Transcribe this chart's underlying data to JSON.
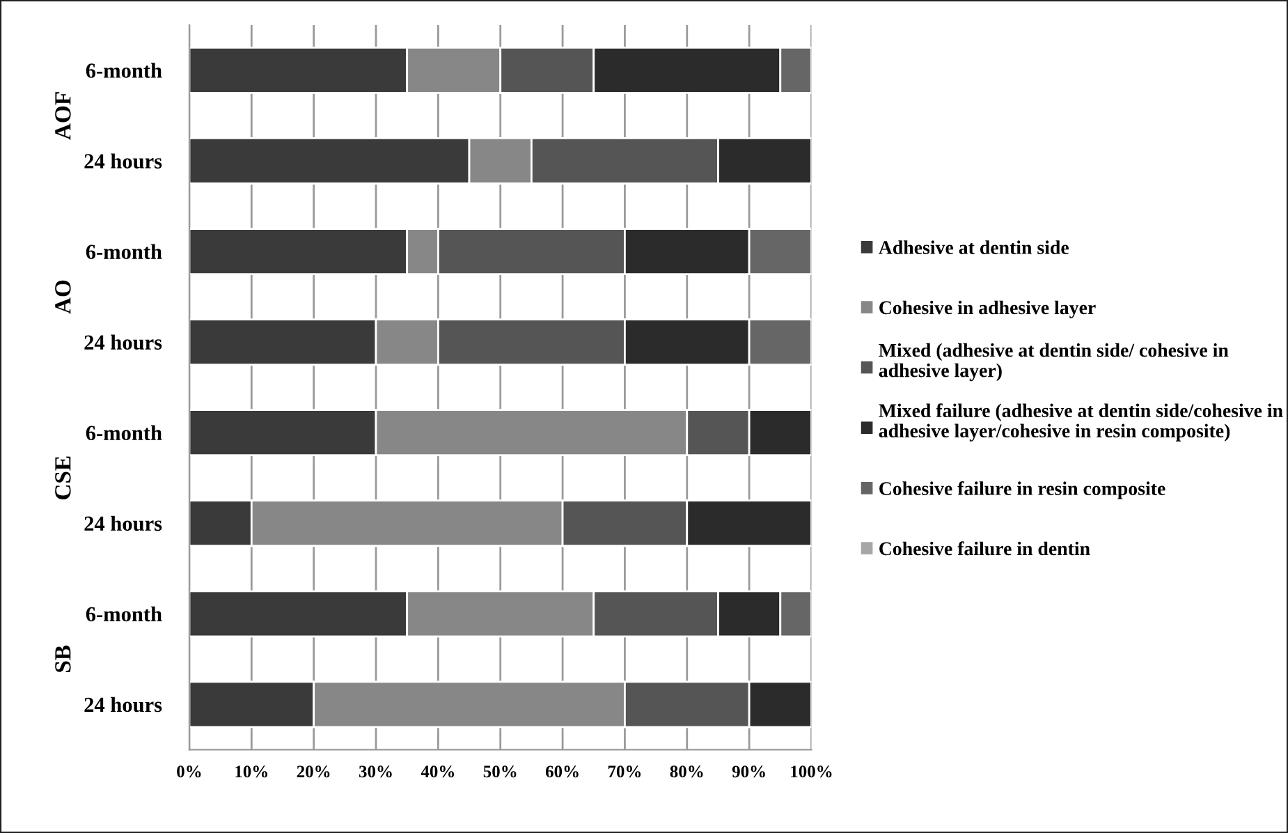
{
  "chart_data": {
    "type": "bar",
    "orientation": "horizontal",
    "stacked": true,
    "categories": [
      "6-month",
      "24 hours",
      "6-month",
      "24 hours",
      "6-month",
      "24 hours",
      "6-month",
      "24 hours"
    ],
    "annotations": [
      "AOF",
      "AO",
      "CSE",
      "SB"
    ],
    "series": [
      {
        "name": "Adhesive at dentin side",
        "color": "#3a3a3a",
        "values": [
          35,
          45,
          35,
          30,
          30,
          10,
          35,
          20
        ]
      },
      {
        "name": "Cohesive in adhesive layer",
        "color": "#878787",
        "values": [
          15,
          10,
          5,
          10,
          50,
          50,
          30,
          50
        ]
      },
      {
        "name": "Mixed (adhesive at dentin side/ cohesive in adhesive layer)",
        "color": "#555555",
        "values": [
          15,
          30,
          30,
          30,
          10,
          20,
          20,
          20
        ]
      },
      {
        "name": "Mixed failure (adhesive at dentin side/cohesive in adhesive layer/cohesive in resin composite)",
        "color": "#2b2b2b",
        "values": [
          30,
          15,
          20,
          20,
          10,
          20,
          10,
          10
        ]
      },
      {
        "name": "Cohesive failure in resin composite",
        "color": "#666666",
        "values": [
          5,
          0,
          10,
          10,
          0,
          0,
          5,
          0
        ]
      },
      {
        "name": "Cohesive failure in dentin",
        "color": "#a6a6a6",
        "values": [
          0,
          0,
          0,
          0,
          0,
          0,
          0,
          0
        ]
      }
    ],
    "xlim": [
      0,
      100
    ],
    "xticks": [
      {
        "value": 0,
        "label": "0%"
      },
      {
        "value": 10,
        "label": "10%"
      },
      {
        "value": 20,
        "label": "20%"
      },
      {
        "value": 30,
        "label": "30%"
      },
      {
        "value": 40,
        "label": "40%"
      },
      {
        "value": 50,
        "label": "50%"
      },
      {
        "value": 60,
        "label": "60%"
      },
      {
        "value": 70,
        "label": "70%"
      },
      {
        "value": 80,
        "label": "80%"
      },
      {
        "value": 90,
        "label": "90%"
      },
      {
        "value": 100,
        "label": "100%"
      }
    ],
    "grid": "x",
    "legend": "right"
  }
}
